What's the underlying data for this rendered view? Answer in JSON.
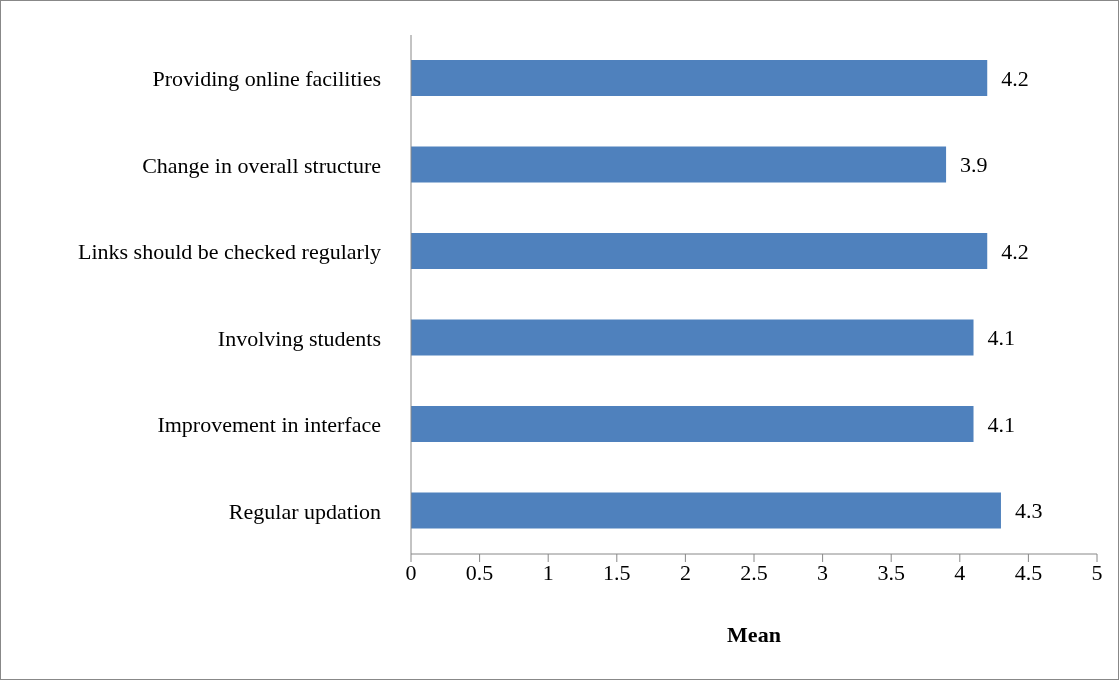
{
  "chart_data": {
    "type": "bar",
    "orientation": "horizontal",
    "xlabel": "Mean",
    "categories": [
      "Providing online facilities",
      "Change in overall structure",
      "Links should be checked regularly",
      "Involving students",
      "Improvement in interface",
      "Regular updation"
    ],
    "values": [
      4.2,
      3.9,
      4.2,
      4.1,
      4.1,
      4.3
    ],
    "color": "#4f81bd",
    "xlim": [
      0,
      5
    ],
    "xticks": [
      0,
      0.5,
      1,
      1.5,
      2,
      2.5,
      3,
      3.5,
      4,
      4.5,
      5
    ],
    "data_labels": true
  }
}
